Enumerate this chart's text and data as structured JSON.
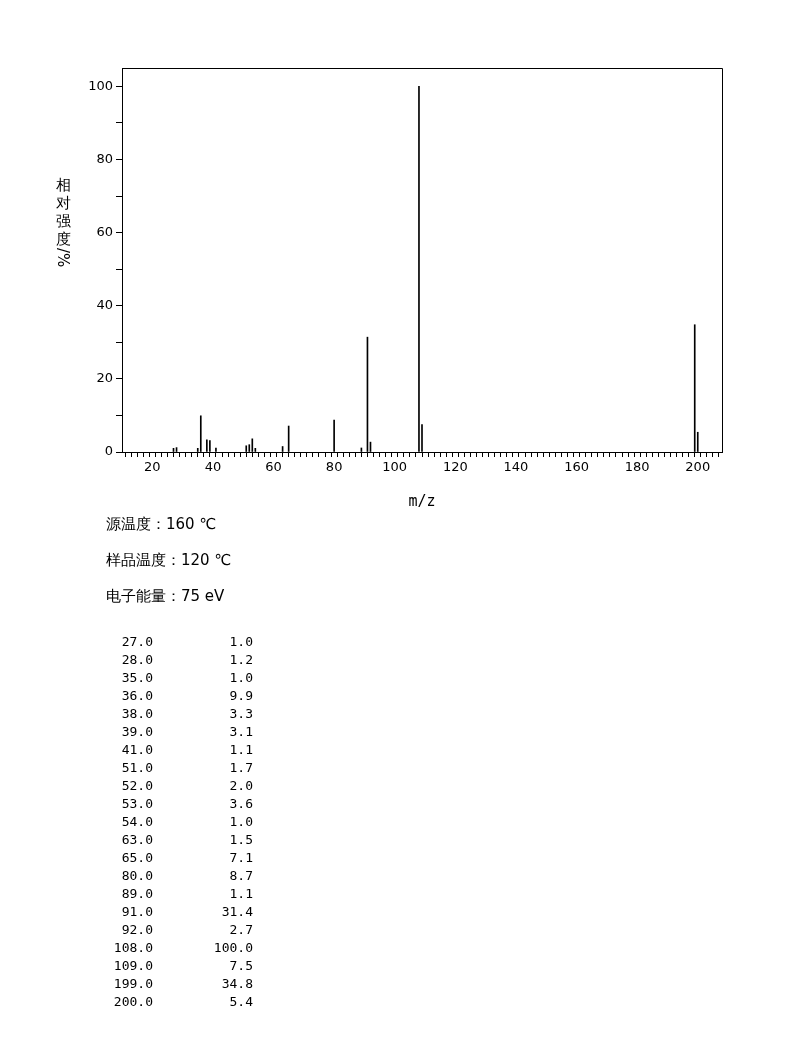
{
  "chart_data": {
    "type": "bar",
    "xlabel": "m/z",
    "ylabel": "相对强度/%",
    "x": [
      27,
      28,
      35,
      36,
      38,
      39,
      41,
      51,
      52,
      53,
      54,
      63,
      65,
      80,
      89,
      91,
      92,
      108,
      109,
      199,
      200
    ],
    "values": [
      1.0,
      1.2,
      1.0,
      9.9,
      3.3,
      3.1,
      1.1,
      1.7,
      2.0,
      3.6,
      1.0,
      1.5,
      7.1,
      8.7,
      1.1,
      31.4,
      2.7,
      100.0,
      7.5,
      34.8,
      5.4
    ],
    "color": "#000000",
    "xlim": [
      10,
      208
    ],
    "xticks": [
      {
        "value": 12,
        "label": null
      },
      {
        "value": 14,
        "label": null
      },
      {
        "value": 16,
        "label": null
      },
      {
        "value": 18,
        "label": null
      },
      20,
      {
        "value": 22,
        "label": null
      },
      {
        "value": 24,
        "label": null
      },
      {
        "value": 26,
        "label": null
      },
      {
        "value": 28,
        "label": null
      },
      {
        "value": 30,
        "label": null
      },
      {
        "value": 32,
        "label": null
      },
      {
        "value": 34,
        "label": null
      },
      {
        "value": 36,
        "label": null
      },
      {
        "value": 38,
        "label": null
      },
      40,
      {
        "value": 42,
        "label": null
      },
      {
        "value": 44,
        "label": null
      },
      {
        "value": 46,
        "label": null
      },
      {
        "value": 48,
        "label": null
      },
      {
        "value": 50,
        "label": null
      },
      {
        "value": 52,
        "label": null
      },
      {
        "value": 54,
        "label": null
      },
      {
        "value": 56,
        "label": null
      },
      {
        "value": 58,
        "label": null
      },
      60,
      {
        "value": 62,
        "label": null
      },
      {
        "value": 64,
        "label": null
      },
      {
        "value": 66,
        "label": null
      },
      {
        "value": 68,
        "label": null
      },
      {
        "value": 70,
        "label": null
      },
      {
        "value": 72,
        "label": null
      },
      {
        "value": 74,
        "label": null
      },
      {
        "value": 76,
        "label": null
      },
      {
        "value": 78,
        "label": null
      },
      80,
      {
        "value": 82,
        "label": null
      },
      {
        "value": 84,
        "label": null
      },
      {
        "value": 86,
        "label": null
      },
      {
        "value": 88,
        "label": null
      },
      {
        "value": 90,
        "label": null
      },
      {
        "value": 92,
        "label": null
      },
      {
        "value": 94,
        "label": null
      },
      {
        "value": 96,
        "label": null
      },
      {
        "value": 98,
        "label": null
      },
      100,
      {
        "value": 102,
        "label": null
      },
      {
        "value": 104,
        "label": null
      },
      {
        "value": 106,
        "label": null
      },
      {
        "value": 108,
        "label": null
      },
      {
        "value": 110,
        "label": null
      },
      {
        "value": 112,
        "label": null
      },
      {
        "value": 114,
        "label": null
      },
      {
        "value": 116,
        "label": null
      },
      {
        "value": 118,
        "label": null
      },
      120,
      {
        "value": 122,
        "label": null
      },
      {
        "value": 124,
        "label": null
      },
      {
        "value": 126,
        "label": null
      },
      {
        "value": 128,
        "label": null
      },
      {
        "value": 130,
        "label": null
      },
      {
        "value": 132,
        "label": null
      },
      {
        "value": 134,
        "label": null
      },
      {
        "value": 136,
        "label": null
      },
      {
        "value": 138,
        "label": null
      },
      140,
      {
        "value": 142,
        "label": null
      },
      {
        "value": 144,
        "label": null
      },
      {
        "value": 146,
        "label": null
      },
      {
        "value": 148,
        "label": null
      },
      {
        "value": 150,
        "label": null
      },
      {
        "value": 152,
        "label": null
      },
      {
        "value": 154,
        "label": null
      },
      {
        "value": 156,
        "label": null
      },
      {
        "value": 158,
        "label": null
      },
      160,
      {
        "value": 162,
        "label": null
      },
      {
        "value": 164,
        "label": null
      },
      {
        "value": 166,
        "label": null
      },
      {
        "value": 168,
        "label": null
      },
      {
        "value": 170,
        "label": null
      },
      {
        "value": 172,
        "label": null
      },
      {
        "value": 174,
        "label": null
      },
      {
        "value": 176,
        "label": null
      },
      {
        "value": 178,
        "label": null
      },
      180,
      {
        "value": 182,
        "label": null
      },
      {
        "value": 184,
        "label": null
      },
      {
        "value": 186,
        "label": null
      },
      {
        "value": 188,
        "label": null
      },
      {
        "value": 190,
        "label": null
      },
      {
        "value": 192,
        "label": null
      },
      {
        "value": 194,
        "label": null
      },
      {
        "value": 196,
        "label": null
      },
      {
        "value": 198,
        "label": null
      },
      200,
      {
        "value": 202,
        "label": null
      },
      {
        "value": 204,
        "label": null
      },
      {
        "value": 206,
        "label": null
      }
    ],
    "ylim": [
      0,
      105
    ],
    "yticks": [
      0,
      {
        "value": 10,
        "label": null
      },
      20,
      {
        "value": 30,
        "label": null
      },
      40,
      {
        "value": 50,
        "label": null
      },
      60,
      {
        "value": 70,
        "label": null
      },
      80,
      {
        "value": 90,
        "label": null
      },
      100
    ],
    "annotations": [
      "源温度：160 ℃",
      "样品温度：120 ℃",
      "电子能量：75 eV",
      "27.0",
      "1.0",
      "28.0",
      "1.2",
      "35.0",
      "1.0",
      "36.0",
      "9.9",
      "38.0",
      "3.3",
      "39.0",
      "3.1",
      "41.0",
      "1.1",
      "51.0",
      "1.7",
      "52.0",
      "2.0",
      "53.0",
      "3.6",
      "54.0",
      "1.0",
      "63.0",
      "1.5",
      "65.0",
      "7.1",
      "80.0",
      "8.7",
      "89.0",
      "1.1",
      "91.0",
      "31.4",
      "92.0",
      "2.7",
      "108.0",
      "100.0",
      "109.0",
      "7.5",
      "199.0",
      "34.8",
      "200.0",
      "5.4"
    ]
  }
}
